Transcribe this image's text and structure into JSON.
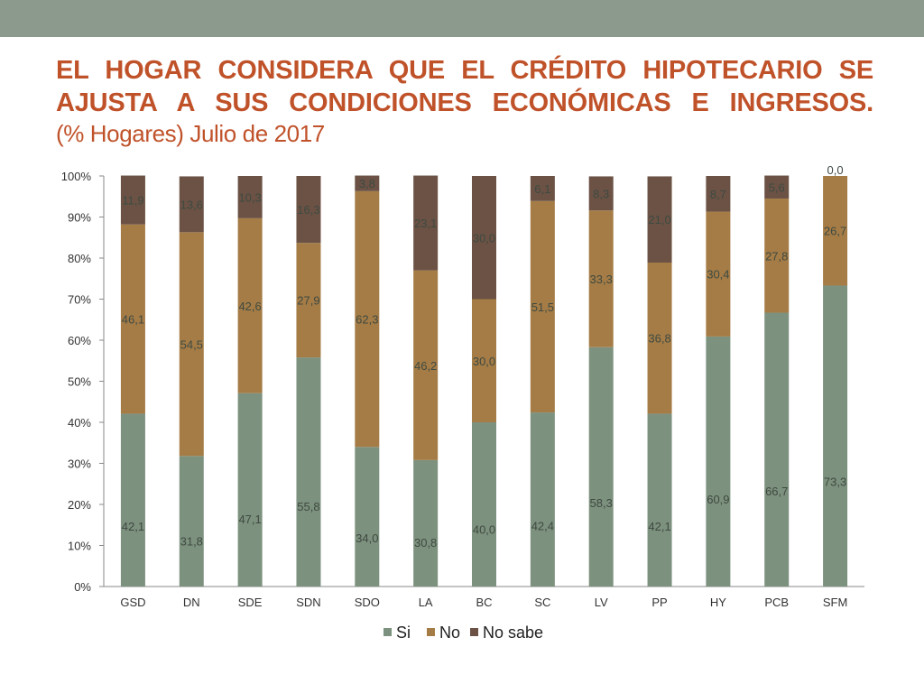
{
  "slide": {
    "title_line1": "EL HOGAR CONSIDERA QUE EL CRÉDITO HIPOTECARIO SE",
    "title_line2": "AJUSTA A SUS CONDICIONES ECONÓMICAS E INGRESOS.",
    "subtitle": "(% Hogares) Julio de 2017"
  },
  "chart_data": {
    "type": "bar",
    "stacked": "percent",
    "categories": [
      "GSD",
      "DN",
      "SDE",
      "SDN",
      "SDO",
      "LA",
      "BC",
      "SC",
      "LV",
      "PP",
      "HY",
      "PCB",
      "SFM"
    ],
    "series": [
      {
        "name": "Si",
        "color": "#7d917f",
        "values": [
          42.1,
          31.8,
          47.1,
          55.8,
          34.0,
          30.8,
          40.0,
          42.4,
          58.3,
          42.1,
          60.9,
          66.7,
          73.3
        ],
        "labels": [
          "42,1",
          "31,8",
          "47,1",
          "55,8",
          "34,0",
          "30,8",
          "40,0",
          "42,4",
          "58,3",
          "42,1",
          "60,9",
          "66,7",
          "73,3"
        ]
      },
      {
        "name": "No",
        "color": "#a57c46",
        "values": [
          46.1,
          54.5,
          42.6,
          27.9,
          62.3,
          46.2,
          30.0,
          51.5,
          33.3,
          36.8,
          30.4,
          27.8,
          26.7
        ],
        "labels": [
          "46,1",
          "54,5",
          "42,6",
          "27,9",
          "62,3",
          "46,2",
          "30,0",
          "51,5",
          "33,3",
          "36,8",
          "30,4",
          "27,8",
          "26,7"
        ]
      },
      {
        "name": "No sabe",
        "color": "#6b5245",
        "values": [
          11.9,
          13.6,
          10.3,
          16.3,
          3.8,
          23.1,
          30.0,
          6.1,
          8.3,
          21.0,
          8.7,
          5.6,
          0.0
        ],
        "labels": [
          "11,9",
          "13,6",
          "10,3",
          "16,3",
          "3,8",
          "23,1",
          "30,0",
          "6,1",
          "8,3",
          "21,0",
          "8,7",
          "5,6",
          "0,0"
        ]
      }
    ],
    "yticks": [
      "0%",
      "10%",
      "20%",
      "30%",
      "40%",
      "50%",
      "60%",
      "70%",
      "80%",
      "90%",
      "100%"
    ],
    "ylim": [
      0,
      100
    ],
    "grid": false,
    "legend_position": "bottom",
    "label_color": "#3f4a41"
  }
}
